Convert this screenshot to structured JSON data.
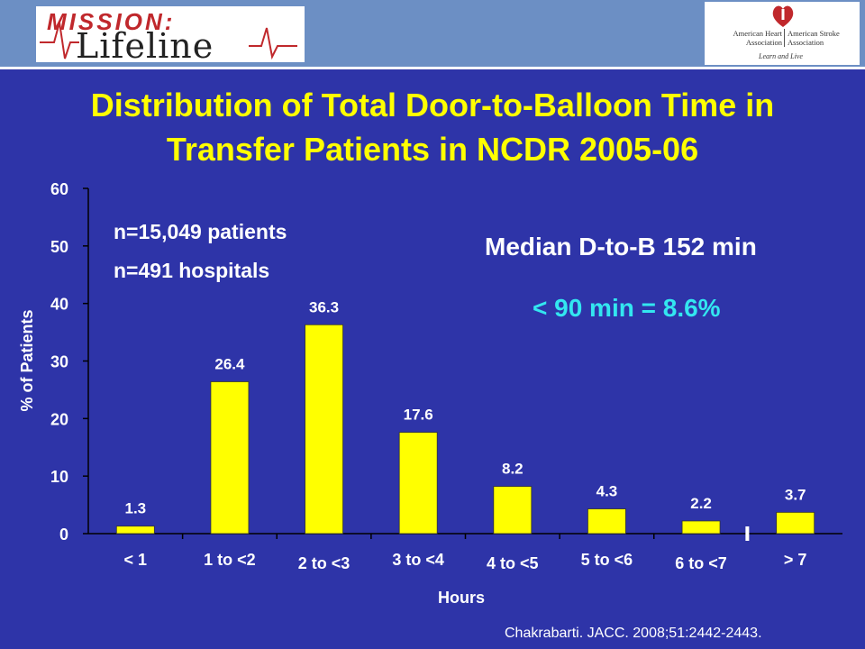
{
  "header": {
    "left_logo_text_top": "MISSION:",
    "left_logo_text_bottom": "Lifeline",
    "right_logo_org1": "American Heart Association",
    "right_logo_org2": "American Stroke Association",
    "right_logo_tagline": "Learn and Live"
  },
  "slide": {
    "title_line1": "Distribution of Total Door-to-Balloon Time in",
    "title_line2": "Transfer Patients in NCDR 2005-06",
    "note_patients": "n=15,049 patients",
    "note_hospitals": "n=491 hospitals",
    "median_text": "Median D-to-B 152 min",
    "under90_text": "< 90 min = 8.6%",
    "citation": "Chakrabarti. JACC. 2008;51:2442-2443."
  },
  "colors": {
    "background": "#2e34a8",
    "bar": "#ffff00",
    "title": "#ffff00",
    "highlight": "#33e6f0",
    "text": "#ffffff"
  },
  "chart_data": {
    "type": "bar",
    "categories": [
      "< 1",
      "1 to <2",
      "2 to <3",
      "3 to <4",
      "4 to <5",
      "5 to <6",
      "6 to <7",
      "> 7"
    ],
    "values": [
      1.3,
      26.4,
      36.3,
      17.6,
      8.2,
      4.3,
      2.2,
      3.7
    ],
    "data_labels": [
      "1.3",
      "26.4",
      "36.3",
      "17.6",
      "8.2",
      "4.3",
      "2.2",
      "3.7"
    ],
    "xlabel": "Hours",
    "ylabel": "% of Patients",
    "ylim": [
      0,
      60
    ],
    "yticks": [
      0,
      10,
      20,
      30,
      40,
      50,
      60
    ],
    "grid": false,
    "legend": "none"
  }
}
